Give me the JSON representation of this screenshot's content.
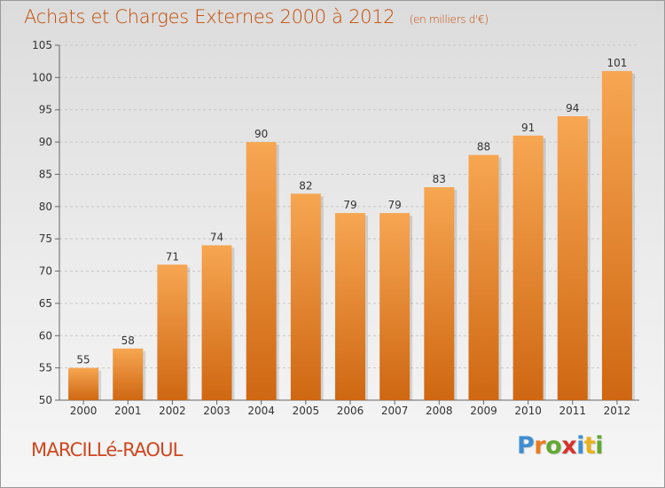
{
  "header": {
    "title": "Achats et Charges Externes 2000 à 2012",
    "subtitle": "(en milliers d'€)"
  },
  "footer": {
    "commune": "MARCILLé-RAOUL",
    "brand": "Proxiti"
  },
  "colors": {
    "bar_top": "#f7a652",
    "bar_bottom": "#cf6712",
    "title": "#c44a00",
    "brand_letters": [
      "#3f8fd2",
      "#e87b1e",
      "#62a832",
      "#d8322b",
      "#3f8fd2",
      "#e8b21e",
      "#62a832"
    ]
  },
  "chart_data": {
    "type": "bar",
    "categories": [
      "2000",
      "2001",
      "2002",
      "2003",
      "2004",
      "2005",
      "2006",
      "2007",
      "2008",
      "2009",
      "2010",
      "2011",
      "2012"
    ],
    "values": [
      55,
      58,
      71,
      74,
      90,
      82,
      79,
      79,
      83,
      88,
      91,
      94,
      101
    ],
    "title": "Achats et Charges Externes 2000 à 2012",
    "subtitle": "(en milliers d'€)",
    "xlabel": "",
    "ylabel": "",
    "ylim": [
      50,
      105
    ],
    "yticks": [
      50,
      55,
      60,
      65,
      70,
      75,
      80,
      85,
      90,
      95,
      100,
      105
    ],
    "grid": true,
    "data_labels": true
  }
}
